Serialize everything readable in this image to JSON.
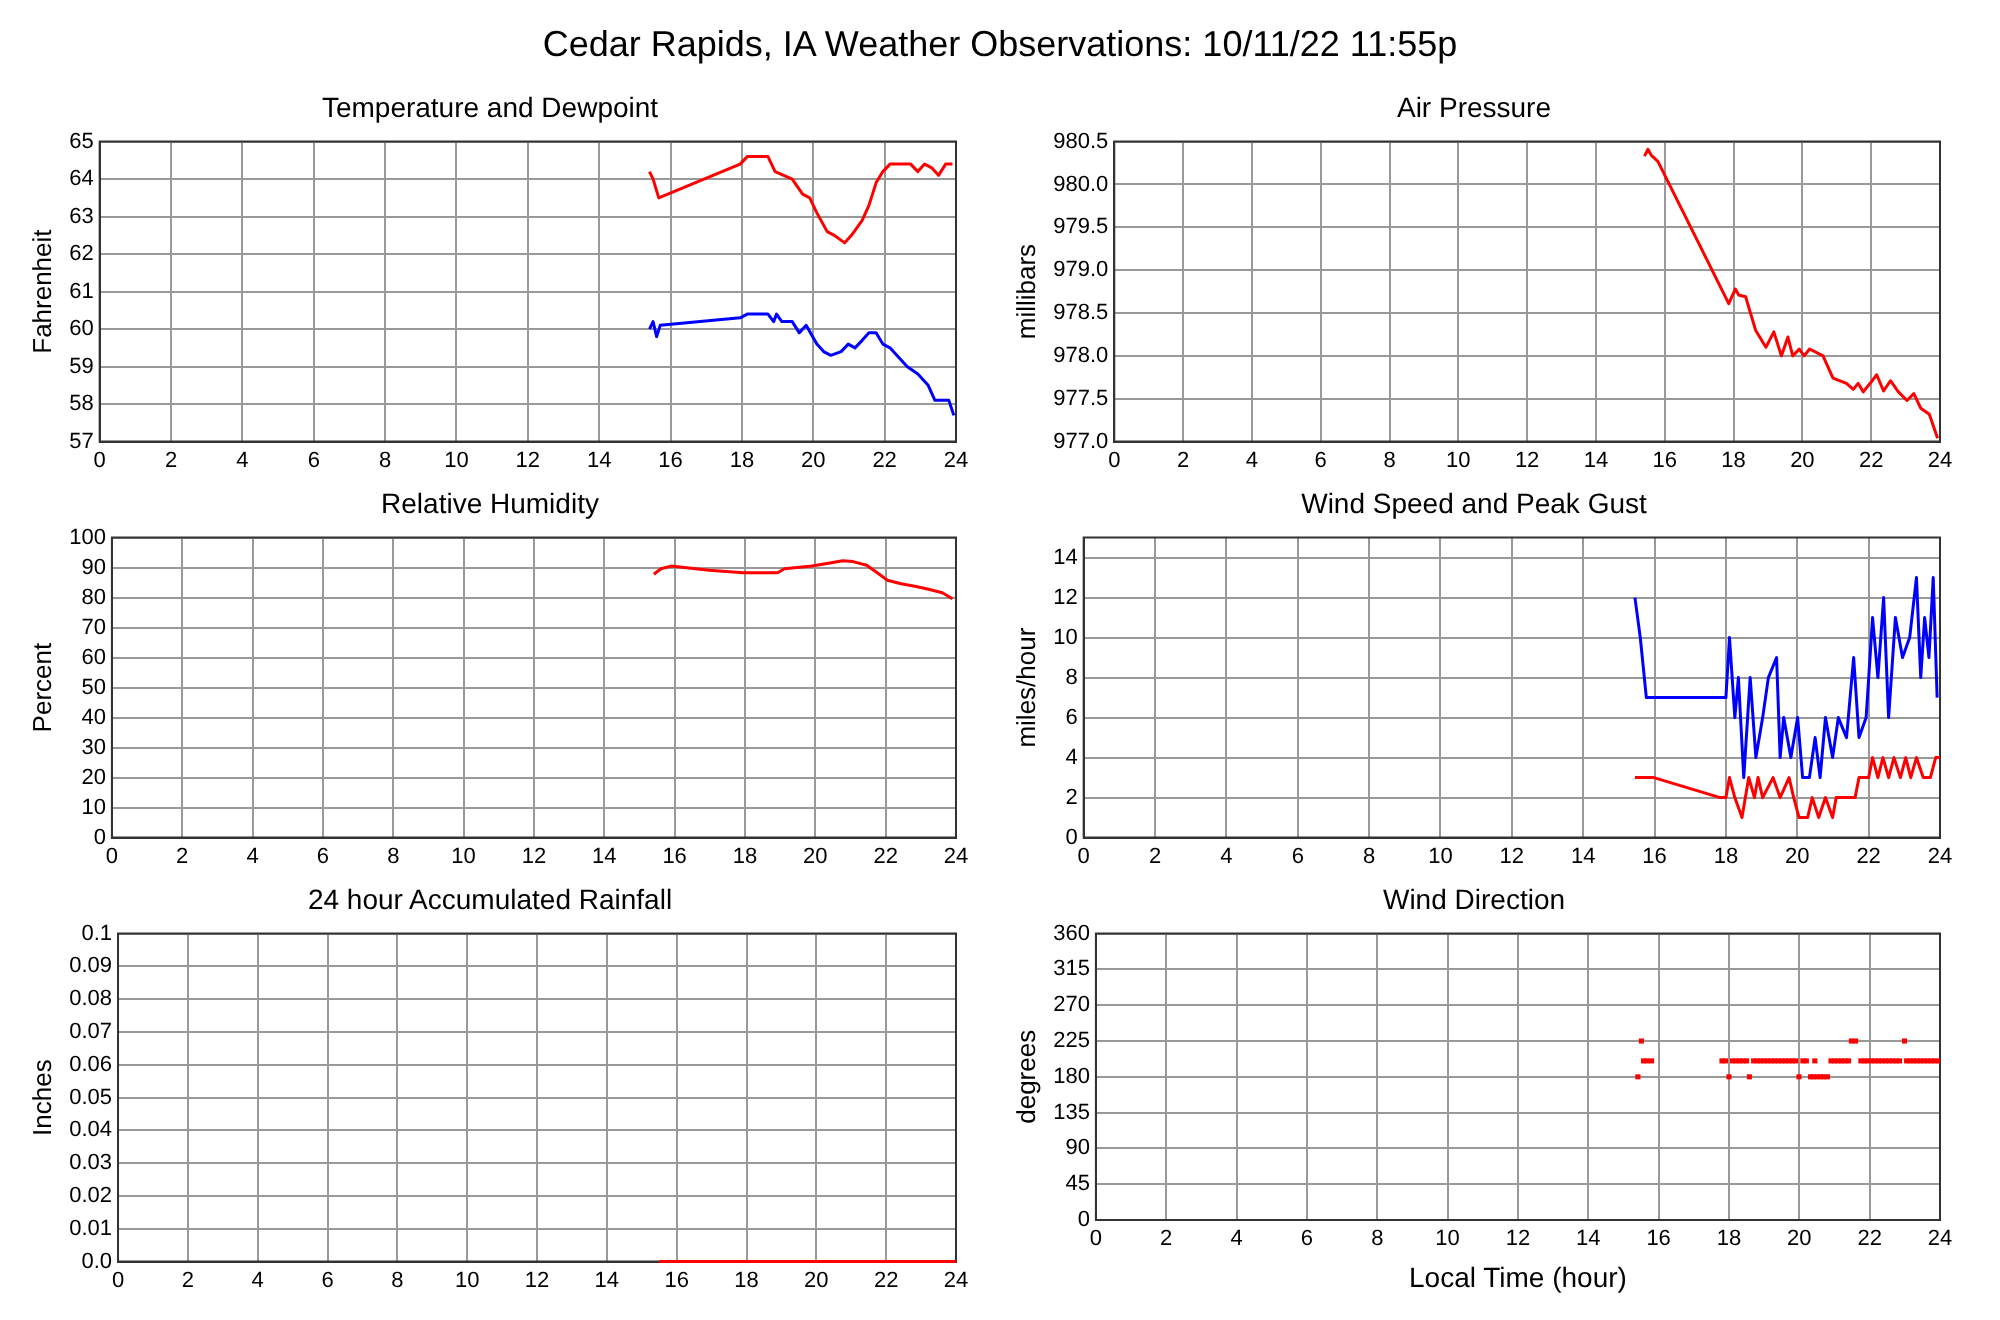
{
  "chart_data": [
    {
      "type": "line",
      "title": "Cedar Rapids, IA Weather Observations: 10/11/22 11:55p",
      "subtitle": "Temperature and Dewpoint",
      "ylabel": "Fahrenheit",
      "xlim": [
        0,
        24
      ],
      "xticks": [
        0,
        2,
        4,
        6,
        8,
        10,
        12,
        14,
        16,
        18,
        20,
        22,
        24
      ],
      "ylim": [
        57,
        65
      ],
      "yticks": [
        57,
        58,
        59,
        60,
        61,
        62,
        63,
        64,
        65
      ],
      "grid": true,
      "series": [
        {
          "color": "#ff0000",
          "x": [
            15.41,
            15.51,
            15.67,
            17.95,
            18.15,
            18.73,
            18.93,
            19.41,
            19.7,
            19.9,
            20.1,
            20.39,
            20.59,
            20.88,
            21.07,
            21.37,
            21.56,
            21.76,
            21.95,
            22.15,
            22.44,
            22.73,
            22.93,
            23.12,
            23.32,
            23.51,
            23.71,
            23.9
          ],
          "values": [
            64.2,
            64.0,
            63.5,
            64.4,
            64.6,
            64.6,
            64.2,
            64.0,
            63.6,
            63.5,
            63.1,
            62.6,
            62.5,
            62.3,
            62.5,
            62.9,
            63.3,
            63.9,
            64.2,
            64.4,
            64.4,
            64.4,
            64.2,
            64.4,
            64.3,
            64.1,
            64.4,
            64.4
          ]
        },
        {
          "color": "#0000ff",
          "x": [
            15.41,
            15.51,
            15.61,
            15.71,
            17.95,
            18.15,
            18.73,
            18.89,
            18.97,
            19.12,
            19.41,
            19.61,
            19.8,
            20.1,
            20.29,
            20.49,
            20.78,
            20.98,
            21.17,
            21.37,
            21.56,
            21.76,
            21.95,
            22.15,
            22.34,
            22.63,
            22.93,
            23.22,
            23.41,
            23.61,
            23.8,
            23.94
          ],
          "values": [
            60.0,
            60.2,
            59.8,
            60.1,
            60.3,
            60.4,
            60.4,
            60.2,
            60.4,
            60.2,
            60.2,
            59.9,
            60.1,
            59.6,
            59.4,
            59.3,
            59.4,
            59.6,
            59.5,
            59.7,
            59.9,
            59.9,
            59.6,
            59.5,
            59.3,
            59.0,
            58.8,
            58.5,
            58.1,
            58.1,
            58.1,
            57.7
          ]
        }
      ]
    },
    {
      "type": "line",
      "title": "Air Pressure",
      "ylabel": "millibars",
      "xlim": [
        0,
        24
      ],
      "xticks": [
        0,
        2,
        4,
        6,
        8,
        10,
        12,
        14,
        16,
        18,
        20,
        22,
        24
      ],
      "ylim": [
        977,
        980.5
      ],
      "yticks": [
        {
          "value": 977,
          "label": "977.0"
        },
        977.5,
        {
          "value": 978,
          "label": "978.0"
        },
        978.5,
        {
          "value": 979,
          "label": "979.0"
        },
        979.5,
        {
          "value": 980,
          "label": "980.0"
        },
        980.5
      ],
      "grid": true,
      "series": [
        {
          "color": "#ff0000",
          "x": [
            15.41,
            15.51,
            15.61,
            15.8,
            17.86,
            18.05,
            18.15,
            18.35,
            18.64,
            18.94,
            19.17,
            19.39,
            19.58,
            19.72,
            19.91,
            20.05,
            20.21,
            20.6,
            20.89,
            21.28,
            21.48,
            21.62,
            21.77,
            21.97,
            22.16,
            22.36,
            22.56,
            22.79,
            23.04,
            23.24,
            23.44,
            23.69,
            23.93
          ],
          "values": [
            980.33,
            980.41,
            980.34,
            980.27,
            978.61,
            978.78,
            978.71,
            978.69,
            978.3,
            978.1,
            978.28,
            978.0,
            978.22,
            978.0,
            978.08,
            978.0,
            978.08,
            978.0,
            977.74,
            977.68,
            977.61,
            977.68,
            977.58,
            977.68,
            977.78,
            977.59,
            977.71,
            977.58,
            977.48,
            977.56,
            977.39,
            977.32,
            977.04
          ]
        }
      ]
    },
    {
      "type": "line",
      "title": "Relative Humidity",
      "ylabel": "Percent",
      "xlim": [
        0,
        24
      ],
      "xticks": [
        0,
        2,
        4,
        6,
        8,
        10,
        12,
        14,
        16,
        18,
        20,
        22,
        24
      ],
      "ylim": [
        0,
        100
      ],
      "yticks": [
        0,
        10,
        20,
        30,
        40,
        50,
        60,
        70,
        80,
        90,
        100
      ],
      "grid": true,
      "series": [
        {
          "color": "#ff0000",
          "x": [
            15.41,
            15.61,
            15.9,
            16.98,
            17.95,
            18.93,
            19.12,
            19.9,
            20.29,
            20.78,
            21.07,
            21.46,
            21.76,
            22.05,
            22.44,
            22.83,
            23.22,
            23.61,
            23.9
          ],
          "values": [
            87.8,
            89.6,
            90.5,
            89.1,
            88.3,
            88.3,
            89.6,
            90.5,
            91.3,
            92.3,
            92.0,
            90.8,
            88.3,
            85.8,
            84.6,
            83.8,
            82.8,
            81.6,
            79.6
          ]
        }
      ]
    },
    {
      "type": "line",
      "title": "Wind Speed and Peak Gust",
      "ylabel": "miles/hour",
      "xlim": [
        0,
        24
      ],
      "xticks": [
        0,
        2,
        4,
        6,
        8,
        10,
        12,
        14,
        16,
        18,
        20,
        22,
        24
      ],
      "ylim": [
        0,
        15
      ],
      "yticks": [
        0,
        2,
        4,
        6,
        8,
        10,
        12,
        14
      ],
      "grid": true,
      "series": [
        {
          "color": "#0000ff",
          "x": [
            15.45,
            15.6,
            15.77,
            18.0,
            18.1,
            18.25,
            18.35,
            18.5,
            18.68,
            18.84,
            19.03,
            19.19,
            19.42,
            19.52,
            19.62,
            19.82,
            20.01,
            20.15,
            20.34,
            20.5,
            20.64,
            20.79,
            20.99,
            21.15,
            21.38,
            21.58,
            21.73,
            21.93,
            22.11,
            22.26,
            22.42,
            22.56,
            22.75,
            22.95,
            23.15,
            23.34,
            23.46,
            23.57,
            23.69,
            23.81,
            23.92
          ],
          "values": [
            12,
            10,
            7,
            7,
            10,
            6,
            8,
            3,
            8,
            4,
            6,
            8,
            9,
            4,
            6,
            4,
            6,
            3,
            3,
            5,
            3,
            6,
            4,
            6,
            5,
            9,
            5,
            6,
            11,
            8,
            12,
            6,
            11,
            9,
            10,
            13,
            8,
            11,
            9,
            13,
            7
          ]
        },
        {
          "color": "#ff0000",
          "x": [
            15.45,
            15.98,
            17.84,
            18.0,
            18.1,
            18.25,
            18.45,
            18.64,
            18.8,
            18.9,
            19.03,
            19.32,
            19.52,
            19.77,
            19.9,
            20.05,
            20.29,
            20.42,
            20.6,
            20.79,
            20.99,
            21.09,
            21.62,
            21.73,
            22.0,
            22.11,
            22.26,
            22.4,
            22.56,
            22.71,
            22.89,
            23.04,
            23.18,
            23.34,
            23.53,
            23.73,
            23.88,
            24.0
          ],
          "values": [
            3,
            3,
            2,
            2,
            3,
            2,
            1,
            3,
            2,
            3,
            2,
            3,
            2,
            3,
            2,
            1,
            1,
            2,
            1,
            2,
            1,
            2,
            2,
            3,
            3,
            4,
            3,
            4,
            3,
            4,
            3,
            4,
            3,
            4,
            3,
            3,
            4,
            4
          ]
        }
      ]
    },
    {
      "type": "line",
      "title": "24 hour Accumulated Rainfall",
      "ylabel": "Inches",
      "xlim": [
        0,
        24
      ],
      "xticks": [
        0,
        2,
        4,
        6,
        8,
        10,
        12,
        14,
        16,
        18,
        20,
        22,
        24
      ],
      "ylim": [
        0,
        0.1
      ],
      "yticks": [
        {
          "value": 0,
          "label": "0.0"
        },
        0.01,
        0.02,
        0.03,
        0.04,
        0.05,
        0.06,
        0.07,
        0.08,
        0.09,
        0.1
      ],
      "grid": true,
      "series": [
        {
          "color": "#ff0000",
          "x": [
            15.5,
            24
          ],
          "values": [
            0,
            0
          ]
        }
      ]
    },
    {
      "type": "scatter",
      "title": "Wind Direction",
      "xlabel": "Local Time (hour)",
      "ylabel": "degrees",
      "xlim": [
        0,
        24
      ],
      "xticks": [
        0,
        2,
        4,
        6,
        8,
        10,
        12,
        14,
        16,
        18,
        20,
        22,
        24
      ],
      "ylim": [
        0,
        360
      ],
      "yticks": [
        0,
        45,
        90,
        135,
        180,
        225,
        270,
        315,
        360
      ],
      "grid": true,
      "marker": "square",
      "series": [
        {
          "color": "#ff0000",
          "x": [
            15.41,
            18.0,
            18.58,
            19.99,
            20.32,
            20.4,
            20.5,
            20.6,
            20.7,
            20.8,
            15.51,
            21.48,
            21.6,
            22.99,
            15.57,
            15.67,
            15.8,
            17.8,
            17.9,
            18.1,
            18.2,
            18.3,
            18.4,
            18.5,
            18.7,
            18.8,
            18.9,
            19.0,
            19.1,
            19.2,
            19.3,
            19.4,
            19.5,
            19.6,
            19.7,
            19.8,
            19.9,
            20.1,
            20.2,
            20.44,
            20.9,
            21.0,
            21.1,
            21.2,
            21.3,
            21.4,
            21.75,
            21.85,
            21.95,
            22.05,
            22.15,
            22.25,
            22.35,
            22.45,
            22.55,
            22.65,
            22.75,
            22.85,
            23.05,
            23.15,
            23.25,
            23.35,
            23.45,
            23.55,
            23.65,
            23.75,
            23.85,
            23.95
          ],
          "values": [
            180,
            180,
            180,
            180,
            180,
            180,
            180,
            180,
            180,
            180,
            225,
            225,
            225,
            225,
            200,
            200,
            200,
            200,
            200,
            200,
            200,
            200,
            200,
            200,
            200,
            200,
            200,
            200,
            200,
            200,
            200,
            200,
            200,
            200,
            200,
            200,
            200,
            200,
            200,
            200,
            200,
            200,
            200,
            200,
            200,
            200,
            200,
            200,
            200,
            200,
            200,
            200,
            200,
            200,
            200,
            200,
            200,
            200,
            200,
            200,
            200,
            200,
            200,
            200,
            200,
            200,
            200,
            200
          ]
        }
      ]
    }
  ]
}
